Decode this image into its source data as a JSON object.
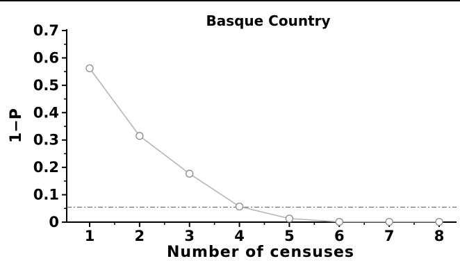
{
  "chart_data": {
    "type": "line",
    "title": "Basque Country",
    "xlabel": "Number of censuses",
    "ylabel": "1−P",
    "x": [
      1,
      2,
      3,
      4,
      5,
      6,
      7,
      8
    ],
    "series": [
      {
        "values": [
          0.562,
          0.315,
          0.177,
          0.057,
          0.013,
          0.001,
          0.001,
          0.001
        ]
      }
    ],
    "reference_line": {
      "y": 0.055,
      "style": "dash-dot"
    },
    "xlim": [
      0.5,
      8.3
    ],
    "ylim": [
      0,
      0.7
    ],
    "xticks": [
      "1",
      "2",
      "3",
      "4",
      "5",
      "6",
      "7",
      "8"
    ],
    "yticks": [
      "0",
      "0.1",
      "0.2",
      "0.3",
      "0.4",
      "0.5",
      "0.6",
      "0.7"
    ],
    "grid": false,
    "marker": "open-circle",
    "colors": {
      "line": "#b5b5b5",
      "marker": "#8a8a8a",
      "reference": "#555555",
      "axis": "#000000"
    }
  }
}
